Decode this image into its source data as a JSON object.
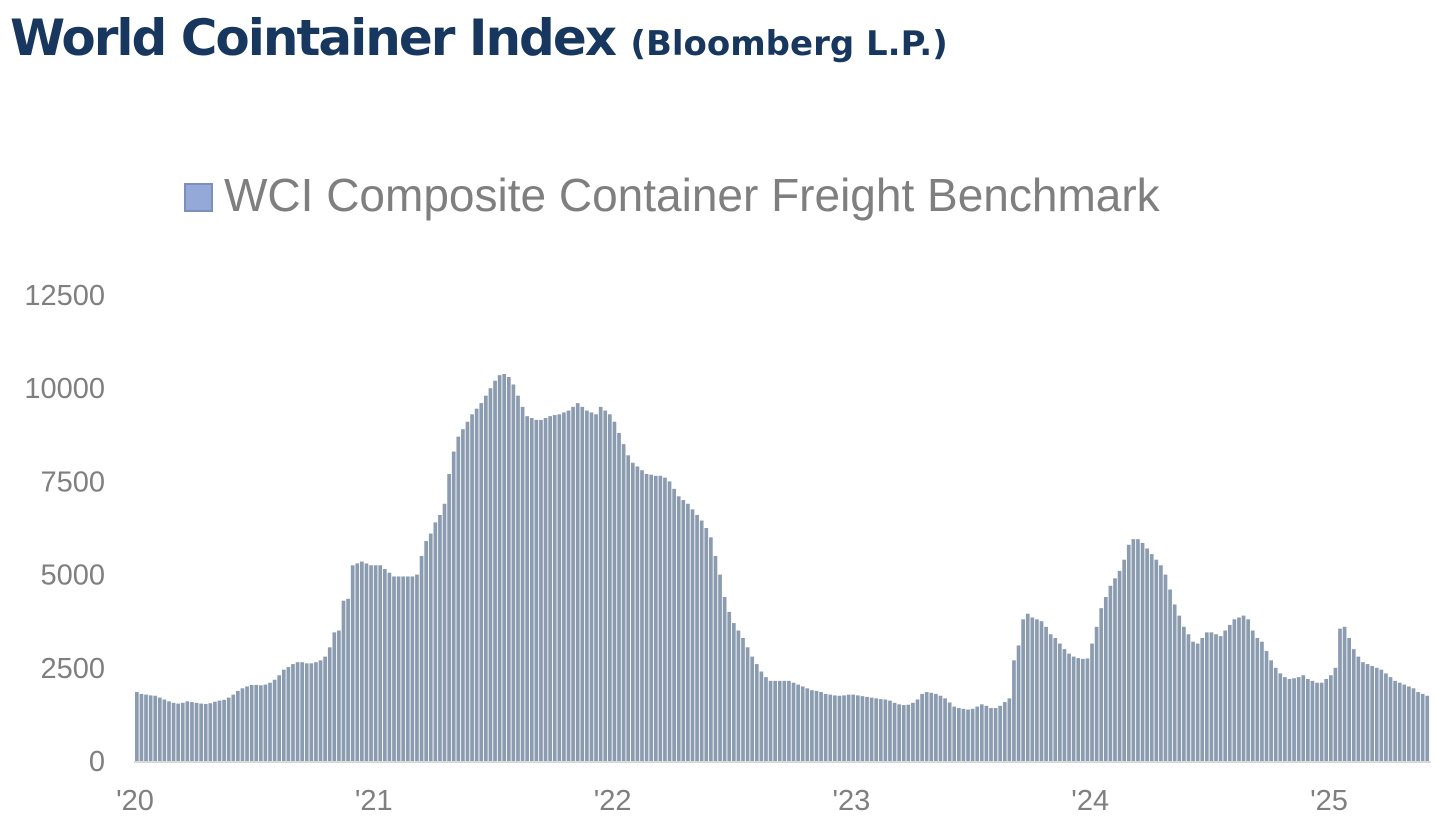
{
  "header": {
    "title": "World Cointainer Index",
    "source": "(Bloomberg L.P.)"
  },
  "chart_data": {
    "type": "bar",
    "title": "World Cointainer Index (Bloomberg L.P.)",
    "legend": "top-center",
    "series": [
      {
        "name": "WCI Composite Container Freight Benchmark",
        "color": "#8b9bb0",
        "legend_color": "#95a9d8",
        "frequency": "weekly",
        "start": "2020-01",
        "values": [
          1850,
          1800,
          1780,
          1760,
          1750,
          1700,
          1650,
          1600,
          1560,
          1540,
          1560,
          1600,
          1580,
          1560,
          1540,
          1530,
          1550,
          1590,
          1620,
          1640,
          1700,
          1780,
          1880,
          1950,
          2000,
          2040,
          2040,
          2030,
          2050,
          2100,
          2180,
          2300,
          2450,
          2520,
          2600,
          2650,
          2650,
          2620,
          2620,
          2650,
          2700,
          2800,
          3050,
          3450,
          3500,
          4300,
          4350,
          5250,
          5300,
          5350,
          5300,
          5250,
          5250,
          5250,
          5150,
          5050,
          4950,
          4950,
          4950,
          4950,
          4950,
          5000,
          5500,
          5900,
          6100,
          6400,
          6600,
          6900,
          7700,
          8300,
          8700,
          8900,
          9100,
          9300,
          9450,
          9600,
          9800,
          10000,
          10200,
          10350,
          10380,
          10300,
          10100,
          9800,
          9500,
          9250,
          9200,
          9150,
          9150,
          9200,
          9250,
          9280,
          9300,
          9350,
          9400,
          9500,
          9600,
          9500,
          9400,
          9350,
          9300,
          9500,
          9400,
          9300,
          9100,
          8800,
          8500,
          8200,
          8000,
          7900,
          7800,
          7700,
          7680,
          7650,
          7650,
          7600,
          7500,
          7300,
          7100,
          7000,
          6900,
          6750,
          6600,
          6450,
          6250,
          6000,
          5500,
          5000,
          4400,
          4000,
          3700,
          3500,
          3300,
          3050,
          2800,
          2600,
          2400,
          2250,
          2150,
          2150,
          2150,
          2150,
          2150,
          2100,
          2050,
          2000,
          1950,
          1900,
          1880,
          1850,
          1800,
          1780,
          1760,
          1750,
          1760,
          1780,
          1780,
          1760,
          1740,
          1720,
          1700,
          1680,
          1660,
          1650,
          1620,
          1560,
          1520,
          1500,
          1510,
          1560,
          1650,
          1800,
          1850,
          1830,
          1800,
          1750,
          1680,
          1570,
          1460,
          1420,
          1400,
          1380,
          1400,
          1460,
          1520,
          1480,
          1420,
          1420,
          1480,
          1580,
          1680,
          2700,
          3100,
          3800,
          3950,
          3850,
          3800,
          3750,
          3600,
          3400,
          3300,
          3150,
          3000,
          2880,
          2800,
          2760,
          2740,
          2750,
          3150,
          3600,
          4100,
          4400,
          4700,
          4900,
          5100,
          5400,
          5800,
          5950,
          5950,
          5850,
          5700,
          5550,
          5400,
          5250,
          5000,
          4600,
          4200,
          3900,
          3600,
          3400,
          3200,
          3150,
          3300,
          3450,
          3450,
          3400,
          3350,
          3500,
          3650,
          3800,
          3850,
          3900,
          3800,
          3500,
          3300,
          3200,
          2950,
          2700,
          2500,
          2350,
          2250,
          2200,
          2220,
          2250,
          2300,
          2200,
          2150,
          2100,
          2100,
          2200,
          2300,
          2500,
          3550,
          3600,
          3300,
          3000,
          2800,
          2650,
          2600,
          2550,
          2500,
          2450,
          2350,
          2250,
          2150,
          2100,
          2050,
          2000,
          1950,
          1850,
          1800,
          1750
        ]
      }
    ],
    "ylim": [
      0,
      12500
    ],
    "yticks": [
      "12500",
      "10000",
      "7500",
      "5000",
      "2500",
      "0"
    ],
    "xticks": [
      "'20",
      "'21",
      "'22",
      "'23",
      "'24",
      "'25"
    ],
    "xlabel": "",
    "ylabel": "",
    "grid": false
  }
}
